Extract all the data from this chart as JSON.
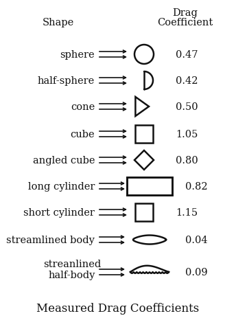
{
  "title": "Measured Drag Coefficients",
  "header_shape": "Shape",
  "header_drag1": "Drag",
  "header_drag2": "Coefficient",
  "rows": [
    {
      "label": "sphere",
      "value": "0.47"
    },
    {
      "label": "half-sphere",
      "value": "0.42"
    },
    {
      "label": "cone",
      "value": "0.50"
    },
    {
      "label": "cube",
      "value": "1.05"
    },
    {
      "label": "angled cube",
      "value": "0.80"
    },
    {
      "label": "long cylinder",
      "value": "0.82"
    },
    {
      "label": "short cylinder",
      "value": "1.15"
    },
    {
      "label": "streamlined body",
      "value": "0.04"
    },
    {
      "label": "streanlined",
      "label2": "half-body",
      "value": "0.09"
    }
  ],
  "bg_color": "#ffffff",
  "text_color": "#111111",
  "font_size": 10.5,
  "title_font_size": 12,
  "fig_w": 3.44,
  "fig_h": 4.64,
  "dpi": 100
}
